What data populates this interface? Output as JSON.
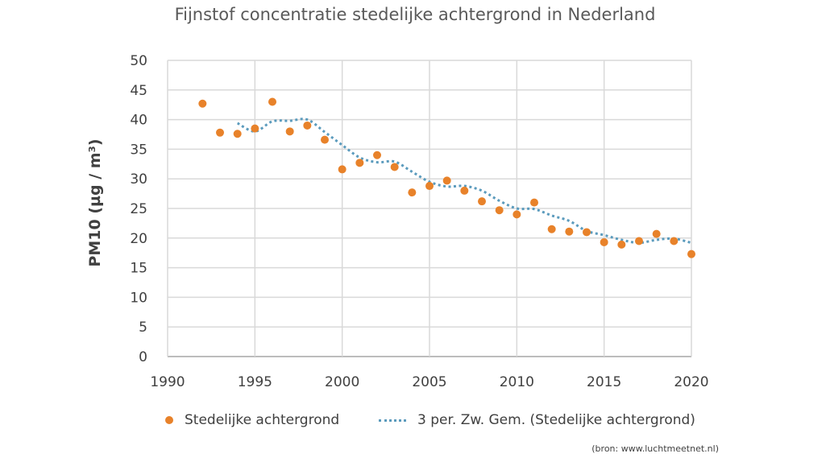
{
  "chart_data": {
    "type": "scatter",
    "title": "Fijnstof concentratie stedelijke achtergrond in Nederland",
    "ylabel": "PM10 (µg / m³)",
    "xlabel": "",
    "xlim": [
      1990,
      2020
    ],
    "ylim": [
      0,
      50
    ],
    "x_ticks": [
      1990,
      1995,
      2000,
      2005,
      2010,
      2015,
      2020
    ],
    "y_ticks": [
      0,
      5,
      10,
      15,
      20,
      25,
      30,
      35,
      40,
      45,
      50
    ],
    "grid": true,
    "legend_position": "bottom",
    "series": [
      {
        "name": "Stedelijke achtergrond",
        "color": "#e8822a",
        "marker": "circle",
        "x": [
          1992,
          1993,
          1994,
          1995,
          1996,
          1997,
          1998,
          1999,
          2000,
          2001,
          2002,
          2003,
          2004,
          2005,
          2006,
          2007,
          2008,
          2009,
          2010,
          2011,
          2012,
          2013,
          2014,
          2015,
          2016,
          2017,
          2018,
          2019,
          2020
        ],
        "y": [
          42.7,
          37.8,
          37.6,
          38.5,
          43.0,
          38.0,
          39.0,
          36.6,
          31.6,
          32.7,
          34.0,
          32.0,
          27.7,
          28.8,
          29.7,
          28.0,
          26.2,
          24.7,
          24.0,
          26.0,
          21.5,
          21.1,
          21.0,
          19.3,
          18.9,
          19.5,
          20.7,
          19.5,
          17.3
        ]
      },
      {
        "name": "3 per. Zw. Gem. (Stedelijke achtergrond)",
        "color": "#5b9bbd",
        "style": "dotted",
        "x": [
          1994,
          1995,
          1996,
          1997,
          1998,
          1999,
          2000,
          2001,
          2002,
          2003,
          2004,
          2005,
          2006,
          2007,
          2008,
          2009,
          2010,
          2011,
          2012,
          2013,
          2014,
          2015,
          2016,
          2017,
          2018,
          2019,
          2020
        ],
        "y": [
          39.4,
          38.0,
          39.7,
          39.8,
          40.0,
          37.9,
          35.7,
          33.6,
          32.8,
          32.9,
          31.2,
          29.5,
          28.7,
          28.8,
          28.0,
          26.3,
          25.0,
          24.9,
          23.8,
          22.9,
          21.2,
          20.5,
          19.7,
          19.2,
          19.7,
          19.9,
          19.2
        ]
      }
    ]
  },
  "source_note": "(bron: www.luchtmeetnet.nl)"
}
